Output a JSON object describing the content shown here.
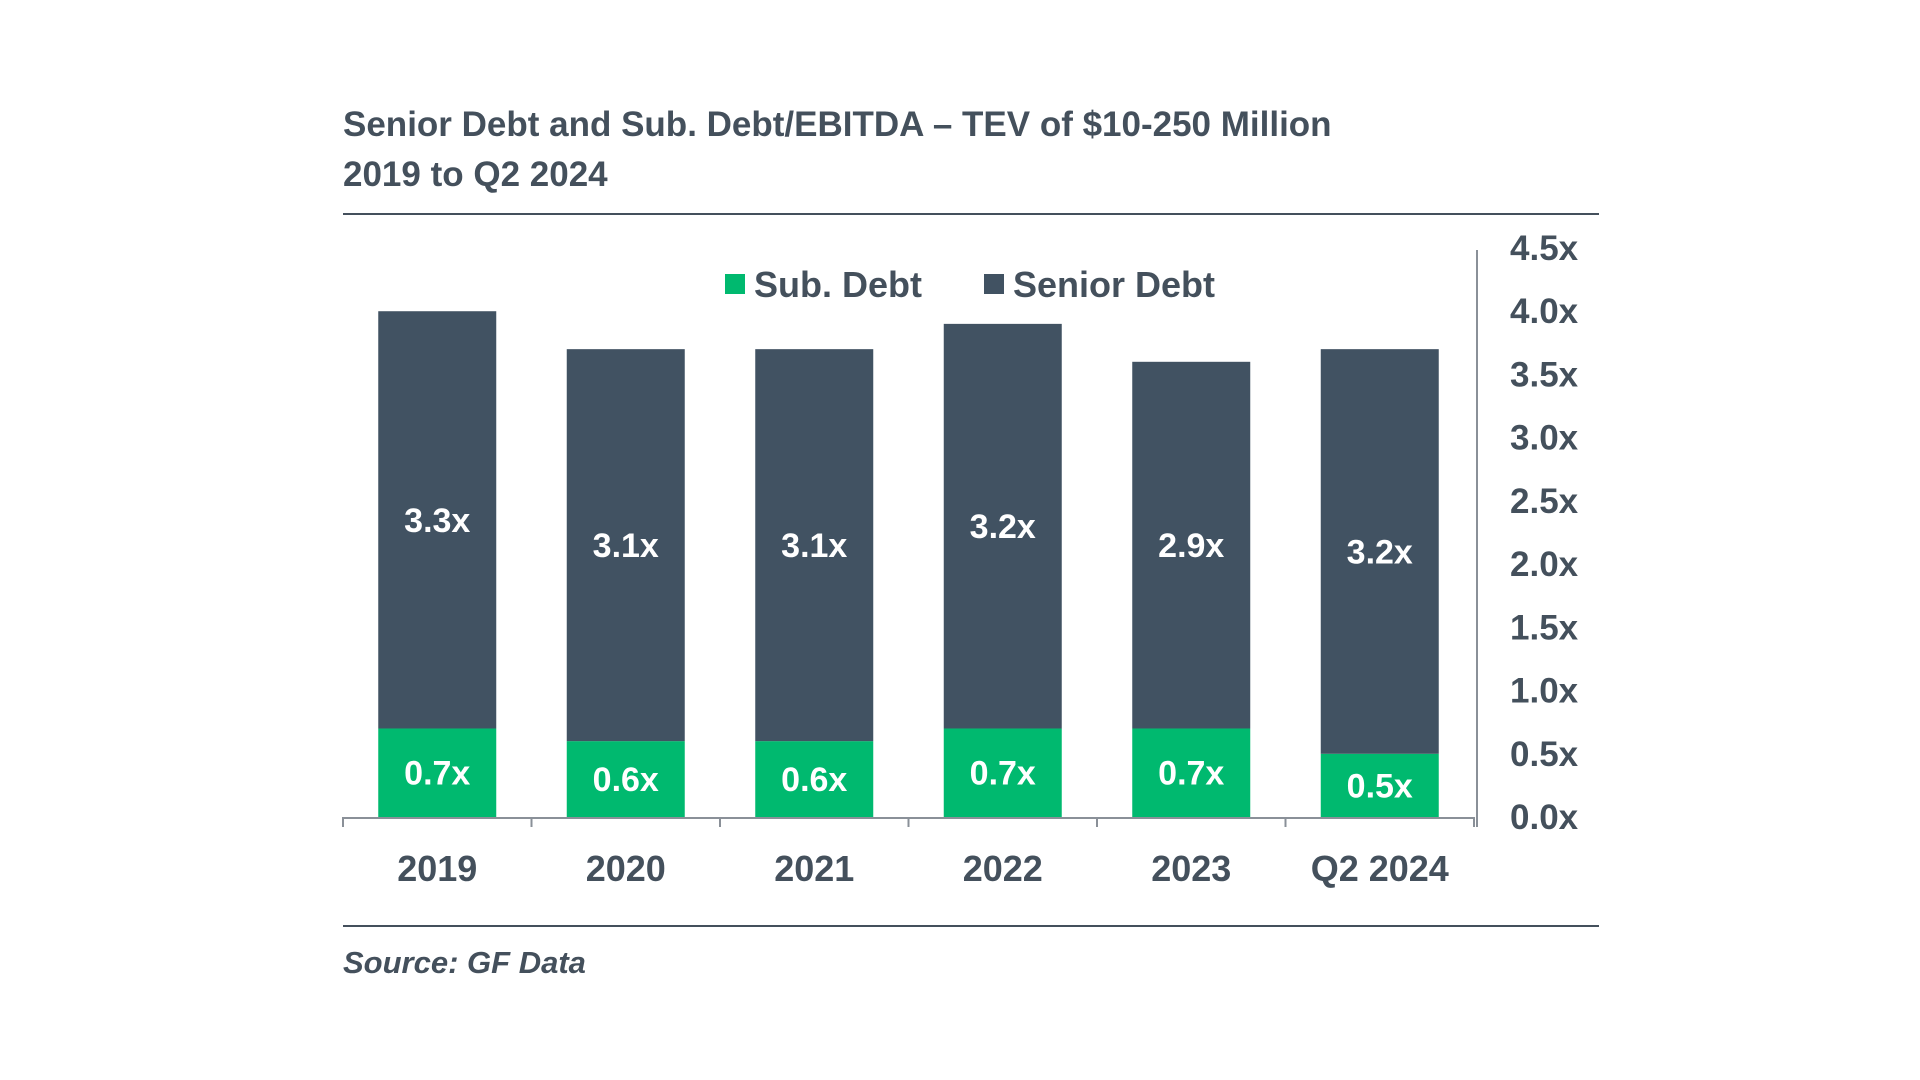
{
  "title": {
    "line1": "Senior Debt and Sub. Debt/EBITDA – TEV of $10-250 Million",
    "line2": "2019 to Q2 2024"
  },
  "source": "Source: GF Data",
  "colors": {
    "sub_debt": "#00b96f",
    "senior_debt": "#415262",
    "text": "#44505c",
    "axis": "#8a9098"
  },
  "chart_data": {
    "type": "bar",
    "stacked": true,
    "categories": [
      "2019",
      "2020",
      "2021",
      "2022",
      "2023",
      "Q2 2024"
    ],
    "series": [
      {
        "name": "Sub. Debt",
        "values": [
          0.7,
          0.6,
          0.6,
          0.7,
          0.7,
          0.5
        ],
        "labels": [
          "0.7x",
          "0.6x",
          "0.6x",
          "0.7x",
          "0.7x",
          "0.5x"
        ],
        "color": "#00b96f"
      },
      {
        "name": "Senior Debt",
        "values": [
          3.3,
          3.1,
          3.1,
          3.2,
          2.9,
          3.2
        ],
        "labels": [
          "3.3x",
          "3.1x",
          "3.1x",
          "3.2x",
          "2.9x",
          "3.2x"
        ],
        "color": "#415262"
      }
    ],
    "y_axis": {
      "position": "right",
      "ylim": [
        0,
        4.5
      ],
      "ticks": [
        0,
        0.5,
        1.0,
        1.5,
        2.0,
        2.5,
        3.0,
        3.5,
        4.0,
        4.5
      ],
      "tick_labels": [
        "0.0x",
        "0.5x",
        "1.0x",
        "1.5x",
        "2.0x",
        "2.5x",
        "3.0x",
        "3.5x",
        "4.0x",
        "4.5x"
      ]
    },
    "legend": {
      "placement": "top-center",
      "items": [
        "Sub. Debt",
        "Senior Debt"
      ]
    },
    "grid": false
  }
}
